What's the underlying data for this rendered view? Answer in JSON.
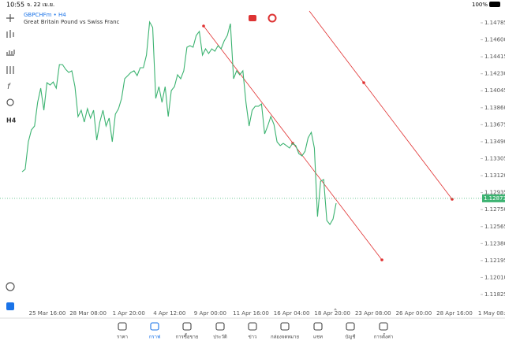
{
  "status_bar": {
    "time": "10:55",
    "date": "จ. 22 เม.ย.",
    "battery": "100%"
  },
  "symbol": "GBPCHFm • H4",
  "description": "Great Britain Pound vs Swiss Franc",
  "left_toolbar": {
    "timeframe": "H4"
  },
  "chart": {
    "type": "line",
    "color": "#3cb371",
    "prices": [
      1.13163,
      1.13189,
      1.13489,
      1.13618,
      1.13661,
      1.13918,
      1.14073,
      1.13833,
      1.14133,
      1.14107,
      1.14141,
      1.14073,
      1.1433,
      1.1433,
      1.14279,
      1.14244,
      1.14262,
      1.1409,
      1.13764,
      1.13833,
      1.13704,
      1.1385,
      1.13747,
      1.13833,
      1.13507,
      1.13704,
      1.13833,
      1.13661,
      1.13747,
      1.13489,
      1.1379,
      1.1385,
      1.13961,
      1.14176,
      1.1421,
      1.14244,
      1.14262,
      1.1421,
      1.14296,
      1.14296,
      1.14433,
      1.14794,
      1.14734,
      1.13961,
      1.1409,
      1.13918,
      1.1409,
      1.13764,
      1.14047,
      1.1409,
      1.14219,
      1.14176,
      1.14262,
      1.14519,
      1.14536,
      1.14519,
      1.14648,
      1.14691,
      1.14433,
      1.14502,
      1.1445,
      1.14502,
      1.14476,
      1.14536,
      1.14502,
      1.14588,
      1.14648,
      1.14776,
      1.14176,
      1.14262,
      1.14219,
      1.14262,
      1.13918,
      1.13661,
      1.13833,
      1.13876,
      1.13876,
      1.13901,
      1.13575,
      1.13661,
      1.13764,
      1.13678,
      1.13489,
      1.13447,
      1.13472,
      1.13447,
      1.13421,
      1.13472,
      1.13447,
      1.13361,
      1.13335,
      1.13386,
      1.13532,
      1.13592,
      1.13421,
      1.12674,
      1.1306,
      1.13078,
      1.12631,
      1.12589,
      1.12649,
      1.1282
    ],
    "ylim": [
      1.11705,
      1.14905
    ],
    "yticks": [
      {
        "value": 1.14785,
        "label": "1.14785"
      },
      {
        "value": 1.146,
        "label": "1.14600"
      },
      {
        "value": 1.14415,
        "label": "1.14415"
      },
      {
        "value": 1.1423,
        "label": "1.14230"
      },
      {
        "value": 1.14045,
        "label": "1.14045"
      },
      {
        "value": 1.1386,
        "label": "1.13860"
      },
      {
        "value": 1.13675,
        "label": "1.13675"
      },
      {
        "value": 1.1349,
        "label": "1.13490"
      },
      {
        "value": 1.13305,
        "label": "1.13305"
      },
      {
        "value": 1.1312,
        "label": "1.13120"
      },
      {
        "value": 1.12935,
        "label": "1.12935"
      },
      {
        "value": 1.1275,
        "label": "1.12750"
      },
      {
        "value": 1.12565,
        "label": "1.12565"
      },
      {
        "value": 1.1238,
        "label": "1.12380"
      },
      {
        "value": 1.12195,
        "label": "1.12195"
      },
      {
        "value": 1.1201,
        "label": "1.12010"
      },
      {
        "value": 1.11825,
        "label": "1.11825"
      }
    ],
    "current_price": {
      "value": 1.12873,
      "label": "1.12873"
    },
    "xticks": [
      "25 Mar 16:00",
      "28 Mar 08:00",
      "1 Apr 20:00",
      "4 Apr 12:00",
      "9 Apr 00:00",
      "11 Apr 16:00",
      "16 Apr 04:00",
      "18 Apr 20:00",
      "23 Apr 08:00",
      "26 Apr 00:00",
      "28 Apr 16:00",
      "1 May 08:00"
    ]
  },
  "nav": [
    "ราคา",
    "กราฟ",
    "การซื้อขาย",
    "ประวัติ",
    "ข่าว",
    "กล่องจดหมาย",
    "แชท",
    "บัญชี",
    "การตั้งค่า"
  ]
}
